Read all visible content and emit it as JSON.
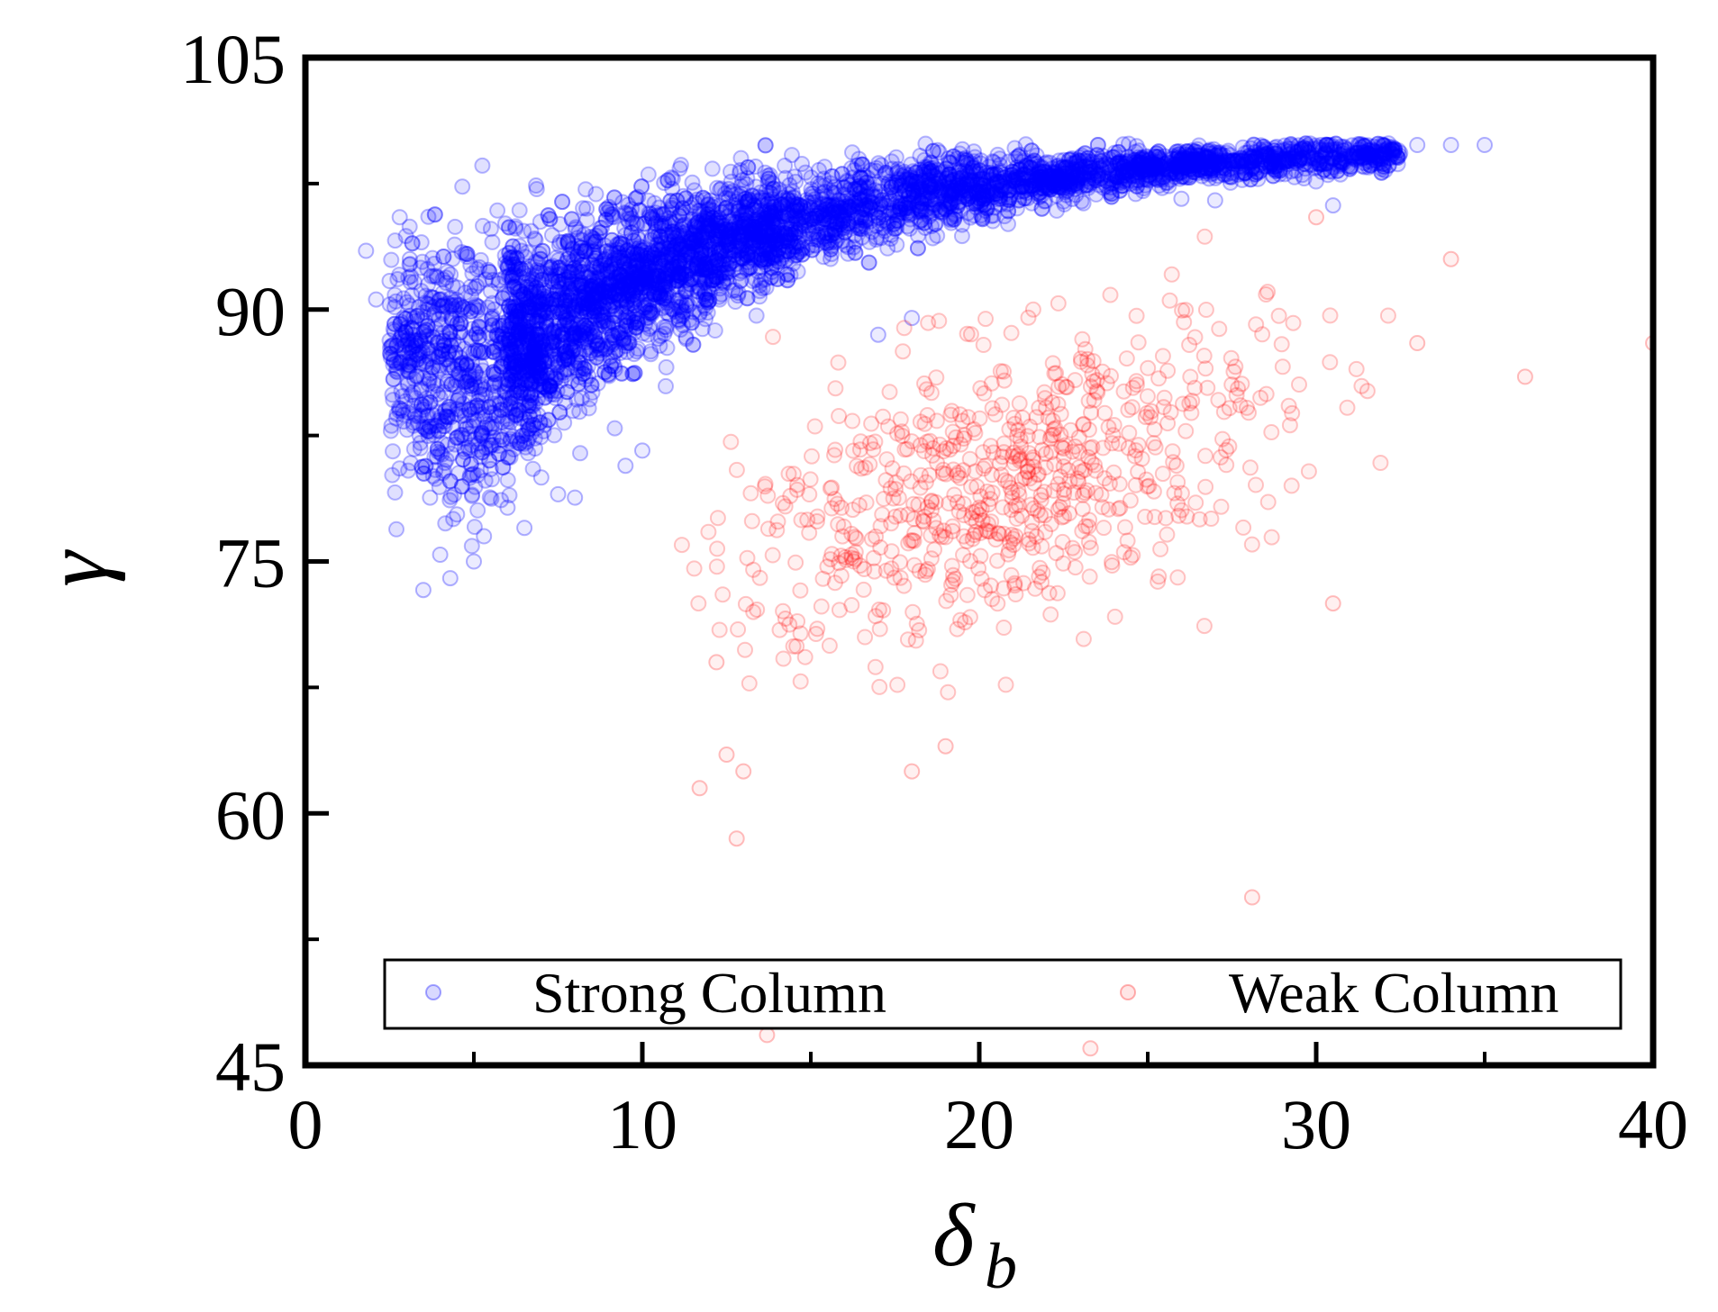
{
  "chart_data": {
    "type": "scatter",
    "xlabel": "δ",
    "xlabel_subscript": "b",
    "ylabel": "γ",
    "xlim": [
      0,
      40
    ],
    "ylim": [
      45,
      105
    ],
    "x_ticks": [
      "0",
      "10",
      "20",
      "30",
      "40"
    ],
    "y_ticks": [
      "45",
      "60",
      "75",
      "90",
      "105"
    ],
    "x_minor_ticks": [
      5,
      15,
      25,
      35
    ],
    "y_minor_ticks": [
      52.5,
      67.5,
      82.5,
      97.5
    ],
    "grid": false,
    "legend_position": "bottom",
    "series": [
      {
        "name": "Strong Column",
        "color": "#0000ff",
        "marker": "open-circle",
        "alpha": 0.18,
        "points": [
          [
            1.8,
            93.5
          ],
          [
            2.1,
            90.6
          ],
          [
            2.5,
            91.7
          ],
          [
            2.8,
            95.5
          ],
          [
            3.1,
            93.0
          ],
          [
            3.3,
            88.0
          ],
          [
            3.5,
            73.3
          ],
          [
            3.7,
            78.8
          ],
          [
            4.0,
            75.4
          ],
          [
            4.3,
            74.0
          ],
          [
            4.5,
            77.8
          ],
          [
            5.0,
            75.0
          ],
          [
            5.3,
            76.5
          ],
          [
            5.5,
            80.5
          ],
          [
            6.0,
            78.2
          ],
          [
            6.5,
            77.0
          ],
          [
            7.0,
            80.0
          ],
          [
            7.5,
            79.0
          ],
          [
            8.0,
            78.8
          ],
          [
            9.5,
            80.7
          ],
          [
            10.0,
            81.6
          ],
          [
            12.0,
            91.0
          ],
          [
            14.0,
            92.5
          ],
          [
            16.0,
            95.5
          ],
          [
            17.0,
            88.5
          ],
          [
            18.0,
            89.5
          ],
          [
            26.0,
            96.6
          ],
          [
            27.0,
            96.5
          ],
          [
            30.0,
            98.5
          ],
          [
            30.5,
            96.2
          ],
          [
            32.0,
            99.8
          ],
          [
            33.0,
            99.8
          ],
          [
            34.0,
            99.8
          ],
          [
            35.0,
            99.8
          ]
        ]
      },
      {
        "name": "Weak Column",
        "color": "#ff0000",
        "marker": "open-circle",
        "alpha": 0.18,
        "points": [
          [
            11.7,
            61.5
          ],
          [
            12.2,
            69.0
          ],
          [
            12.5,
            63.5
          ],
          [
            12.8,
            58.5
          ],
          [
            13.0,
            62.5
          ],
          [
            13.7,
            46.8
          ],
          [
            18.0,
            62.5
          ],
          [
            19.0,
            64.0
          ],
          [
            23.3,
            46.0
          ],
          [
            28.1,
            55.0
          ],
          [
            30.0,
            95.5
          ],
          [
            30.5,
            72.5
          ],
          [
            33.0,
            88.0
          ],
          [
            34.0,
            93.0
          ],
          [
            36.2,
            86.0
          ],
          [
            40.0,
            88.0
          ]
        ]
      }
    ]
  }
}
